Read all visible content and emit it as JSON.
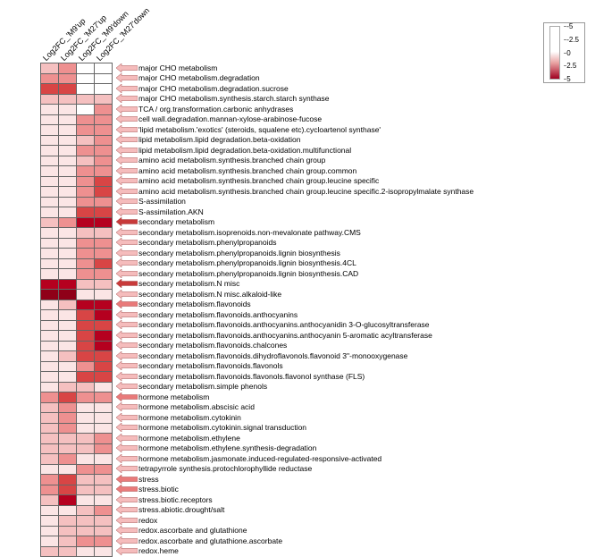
{
  "columns": [
    "Log2FC_'M9'up",
    "Log2FC_'M27'up",
    "Log2FC_'M9'down",
    "Log2FC_'M27'down"
  ],
  "legend": {
    "min": -5,
    "mid1": -2.5,
    "mid": 0,
    "mid2": 2.5,
    "max": 5,
    "colors_stops": [
      "#ffffff",
      "#ffffff",
      "#e8a0a0",
      "#a00020"
    ]
  },
  "cell_colors": {
    "white": "#ffffff",
    "pink1": "#fbe5e5",
    "pink2": "#f5c0c0",
    "pink3": "#ee9090",
    "red1": "#d84545",
    "red2": "#b5001f",
    "darkred": "#8f0018"
  },
  "arrow_fill_light": "#f5bcbc",
  "arrow_fill_mid": "#e97a7a",
  "arrow_fill_dark": "#c83a3a",
  "rows": [
    {
      "label": "major CHO metabolism",
      "cells": [
        "pink2",
        "pink3",
        "white",
        "white"
      ],
      "arrow": "light"
    },
    {
      "label": "major CHO metabolism.degradation",
      "cells": [
        "pink3",
        "pink3",
        "white",
        "white"
      ],
      "arrow": "light"
    },
    {
      "label": "major CHO metabolism.degradation.sucrose",
      "cells": [
        "red1",
        "red1",
        "white",
        "white"
      ],
      "arrow": "light"
    },
    {
      "label": "major CHO metabolism.synthesis.starch.starch synthase",
      "cells": [
        "pink2",
        "pink2",
        "pink2",
        "pink2"
      ],
      "arrow": "light"
    },
    {
      "label": "TCA / org.transformation.carbonic anhydrases",
      "cells": [
        "pink1",
        "pink1",
        "white",
        "pink3"
      ],
      "arrow": "light"
    },
    {
      "label": "cell wall.degradation.mannan-xylose-arabinose-fucose",
      "cells": [
        "pink1",
        "pink1",
        "pink3",
        "pink3"
      ],
      "arrow": "light"
    },
    {
      "label": "'lipid metabolism.'exotics' (steroids, squalene etc).cycloartenol synthase'",
      "cells": [
        "pink1",
        "pink1",
        "pink3",
        "pink3"
      ],
      "arrow": "light"
    },
    {
      "label": "lipid metabolism.lipid degradation.beta-oxidation",
      "cells": [
        "pink1",
        "pink1",
        "pink2",
        "pink3"
      ],
      "arrow": "light"
    },
    {
      "label": "lipid metabolism.lipid degradation.beta-oxidation.multifunctional",
      "cells": [
        "pink1",
        "pink1",
        "pink3",
        "pink3"
      ],
      "arrow": "light"
    },
    {
      "label": "amino acid metabolism.synthesis.branched chain group",
      "cells": [
        "pink1",
        "pink1",
        "pink2",
        "pink3"
      ],
      "arrow": "light"
    },
    {
      "label": "amino acid metabolism.synthesis.branched chain group.common",
      "cells": [
        "pink1",
        "pink1",
        "pink3",
        "pink3"
      ],
      "arrow": "light"
    },
    {
      "label": "amino acid metabolism.synthesis.branched chain group.leucine specific",
      "cells": [
        "pink1",
        "pink1",
        "pink3",
        "red1"
      ],
      "arrow": "light"
    },
    {
      "label": "amino acid metabolism.synthesis.branched chain group.leucine specific.2-isopropylmalate synthase",
      "cells": [
        "pink1",
        "pink1",
        "pink3",
        "red1"
      ],
      "arrow": "light"
    },
    {
      "label": "S-assimilation",
      "cells": [
        "pink1",
        "pink1",
        "pink3",
        "pink3"
      ],
      "arrow": "light"
    },
    {
      "label": "S-assimilation.AKN",
      "cells": [
        "pink1",
        "pink1",
        "red1",
        "red1"
      ],
      "arrow": "light"
    },
    {
      "label": "secondary metabolism",
      "cells": [
        "pink2",
        "pink3",
        "red2",
        "red2"
      ],
      "arrow": "dark"
    },
    {
      "label": "secondary metabolism.isoprenoids.non-mevalonate pathway.CMS",
      "cells": [
        "pink1",
        "pink1",
        "pink2",
        "pink2"
      ],
      "arrow": "light"
    },
    {
      "label": "secondary metabolism.phenylpropanoids",
      "cells": [
        "pink1",
        "pink1",
        "pink3",
        "pink3"
      ],
      "arrow": "light"
    },
    {
      "label": "secondary metabolism.phenylpropanoids.lignin biosynthesis",
      "cells": [
        "pink1",
        "pink1",
        "pink3",
        "pink3"
      ],
      "arrow": "light"
    },
    {
      "label": "secondary metabolism.phenylpropanoids.lignin biosynthesis.4CL",
      "cells": [
        "pink1",
        "pink1",
        "pink3",
        "red1"
      ],
      "arrow": "light"
    },
    {
      "label": "secondary metabolism.phenylpropanoids.lignin biosynthesis.CAD",
      "cells": [
        "pink1",
        "pink1",
        "pink3",
        "pink3"
      ],
      "arrow": "light"
    },
    {
      "label": "secondary metabolism.N misc",
      "cells": [
        "red2",
        "red2",
        "pink2",
        "pink2"
      ],
      "arrow": "dark"
    },
    {
      "label": "secondary metabolism.N misc.alkaloid-like",
      "cells": [
        "darkred",
        "darkred",
        "pink1",
        "pink1"
      ],
      "arrow": "light"
    },
    {
      "label": "secondary metabolism.flavonoids",
      "cells": [
        "pink1",
        "pink2",
        "red2",
        "red2"
      ],
      "arrow": "mid"
    },
    {
      "label": "secondary metabolism.flavonoids.anthocyanins",
      "cells": [
        "pink1",
        "pink1",
        "red1",
        "red2"
      ],
      "arrow": "light"
    },
    {
      "label": "secondary metabolism.flavonoids.anthocyanins.anthocyanidin 3-O-glucosyltransferase",
      "cells": [
        "pink1",
        "pink1",
        "red1",
        "red1"
      ],
      "arrow": "light"
    },
    {
      "label": "secondary metabolism.flavonoids.anthocyanins.anthocyanin 5-aromatic acyltransferase",
      "cells": [
        "pink1",
        "pink1",
        "red1",
        "red2"
      ],
      "arrow": "light"
    },
    {
      "label": "secondary metabolism.flavonoids.chalcones",
      "cells": [
        "pink1",
        "pink1",
        "red1",
        "red2"
      ],
      "arrow": "light"
    },
    {
      "label": "secondary metabolism.flavonoids.dihydroflavonols.flavonoid 3''-monooxygenase",
      "cells": [
        "pink1",
        "pink2",
        "red1",
        "red1"
      ],
      "arrow": "light"
    },
    {
      "label": "secondary metabolism.flavonoids.flavonols",
      "cells": [
        "pink1",
        "pink1",
        "pink3",
        "red1"
      ],
      "arrow": "light"
    },
    {
      "label": "secondary metabolism.flavonoids.flavonols.flavonol synthase (FLS)",
      "cells": [
        "pink1",
        "pink1",
        "red1",
        "red1"
      ],
      "arrow": "light"
    },
    {
      "label": "secondary metabolism.simple phenols",
      "cells": [
        "pink1",
        "pink2",
        "pink2",
        "pink1"
      ],
      "arrow": "light"
    },
    {
      "label": "hormone metabolism",
      "cells": [
        "pink3",
        "red1",
        "pink3",
        "pink3"
      ],
      "arrow": "mid"
    },
    {
      "label": "hormone metabolism.abscisic acid",
      "cells": [
        "pink2",
        "pink3",
        "pink1",
        "pink1"
      ],
      "arrow": "light"
    },
    {
      "label": "hormone metabolism.cytokinin",
      "cells": [
        "pink2",
        "pink3",
        "pink1",
        "pink1"
      ],
      "arrow": "light"
    },
    {
      "label": "hormone metabolism.cytokinin.signal transduction",
      "cells": [
        "pink2",
        "pink3",
        "pink1",
        "pink1"
      ],
      "arrow": "light"
    },
    {
      "label": "hormone metabolism.ethylene",
      "cells": [
        "pink2",
        "pink2",
        "pink2",
        "pink3"
      ],
      "arrow": "light"
    },
    {
      "label": "hormone metabolism.ethylene.synthesis-degradation",
      "cells": [
        "pink2",
        "pink2",
        "pink2",
        "pink3"
      ],
      "arrow": "light"
    },
    {
      "label": "hormone metabolism.jasmonate.induced-regulated-responsive-activated",
      "cells": [
        "pink2",
        "pink3",
        "pink1",
        "pink1"
      ],
      "arrow": "light"
    },
    {
      "label": "tetrapyrrole synthesis.protochlorophyllide reductase",
      "cells": [
        "pink1",
        "pink1",
        "pink3",
        "pink3"
      ],
      "arrow": "light"
    },
    {
      "label": "stress",
      "cells": [
        "pink3",
        "red1",
        "pink2",
        "pink2"
      ],
      "arrow": "mid"
    },
    {
      "label": "stress.biotic",
      "cells": [
        "pink3",
        "red1",
        "pink2",
        "pink2"
      ],
      "arrow": "mid"
    },
    {
      "label": "stress.biotic.receptors",
      "cells": [
        "pink2",
        "red2",
        "pink1",
        "pink1"
      ],
      "arrow": "light"
    },
    {
      "label": "stress.abiotic.drought/salt",
      "cells": [
        "pink1",
        "pink1",
        "pink2",
        "pink3"
      ],
      "arrow": "light"
    },
    {
      "label": "redox",
      "cells": [
        "pink1",
        "pink2",
        "pink2",
        "pink2"
      ],
      "arrow": "light"
    },
    {
      "label": "redox.ascorbate and glutathione",
      "cells": [
        "pink1",
        "pink2",
        "pink2",
        "pink2"
      ],
      "arrow": "light"
    },
    {
      "label": "redox.ascorbate and glutathione.ascorbate",
      "cells": [
        "pink1",
        "pink2",
        "pink3",
        "pink3"
      ],
      "arrow": "light"
    },
    {
      "label": "redox.heme",
      "cells": [
        "pink2",
        "pink2",
        "pink1",
        "pink1"
      ],
      "arrow": "light"
    }
  ]
}
